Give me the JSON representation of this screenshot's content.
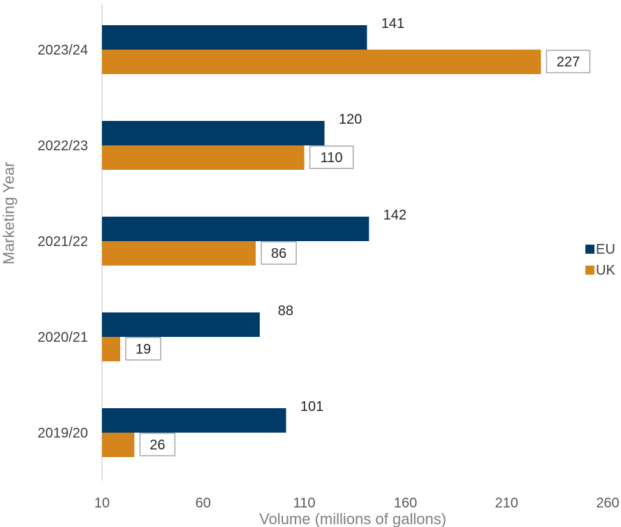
{
  "chart_data": {
    "type": "bar",
    "orientation": "horizontal",
    "categories": [
      "2023/24",
      "2022/23",
      "2021/22",
      "2020/21",
      "2019/20"
    ],
    "series": [
      {
        "name": "EU",
        "values": [
          141,
          120,
          142,
          88,
          101
        ],
        "color": "#003a66"
      },
      {
        "name": "UK",
        "values": [
          227,
          110,
          86,
          19,
          26
        ],
        "color": "#d4861c"
      }
    ],
    "xlabel": "Volume (millions of gallons)",
    "ylabel": "Marketing Year",
    "xlim": [
      10,
      260
    ],
    "xticks": [
      10,
      60,
      110,
      160,
      210,
      260
    ],
    "grid": false,
    "legend": "right"
  }
}
